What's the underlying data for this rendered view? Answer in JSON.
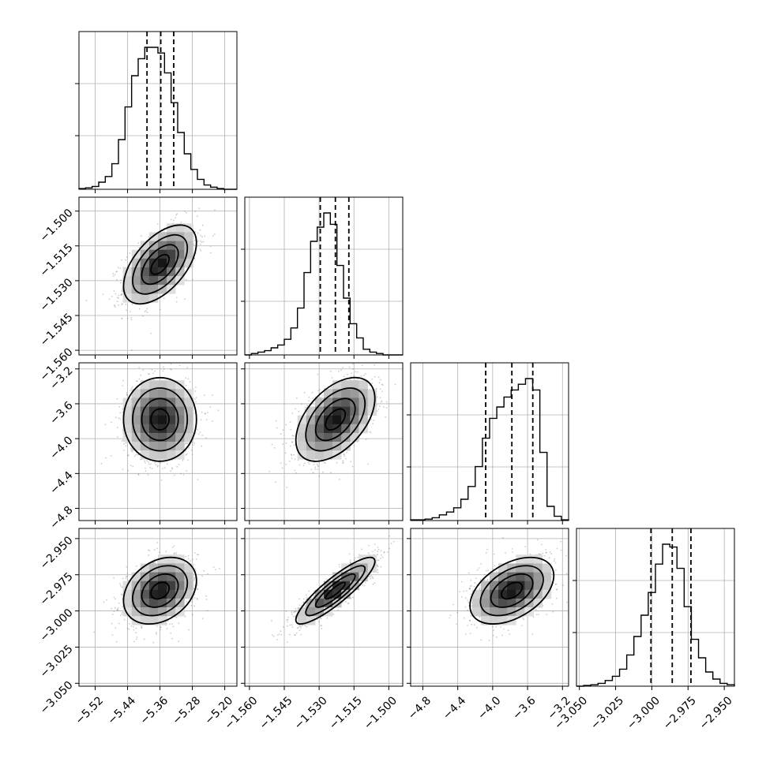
{
  "chart_data": {
    "type": "corner",
    "grid": true,
    "parameters": [
      {
        "range": [
          -5.56,
          -5.17
        ],
        "ticks": [
          -5.52,
          -5.44,
          -5.36,
          -5.28,
          -5.2
        ],
        "tick_labels": [
          "−5.52",
          "−5.44",
          "−5.36",
          "−5.28",
          "−5.20"
        ],
        "quantiles": [
          -5.392,
          -5.358,
          -5.326
        ],
        "hist": [
          0.5,
          1,
          2,
          5,
          9,
          18,
          35,
          58,
          80,
          92,
          100,
          100,
          96,
          82,
          61,
          40,
          25,
          14,
          7,
          3,
          1.5,
          0.5,
          0,
          0
        ]
      },
      {
        "range": [
          -1.562,
          -1.494
        ],
        "ticks": [
          -1.56,
          -1.545,
          -1.53,
          -1.515,
          -1.5
        ],
        "tick_labels": [
          "−1.560",
          "−1.545",
          "−1.530",
          "−1.515",
          "−1.500"
        ],
        "quantiles": [
          -1.5295,
          -1.523,
          -1.5172
        ],
        "hist": [
          0,
          1,
          2,
          3,
          5,
          7,
          11,
          19,
          33,
          58,
          80,
          90,
          100,
          92,
          63,
          40,
          22,
          12,
          4,
          2,
          1,
          0,
          0,
          0
        ]
      },
      {
        "range": [
          -4.94,
          -3.13
        ],
        "ticks": [
          -4.8,
          -4.4,
          -4.0,
          -3.6,
          -3.2
        ],
        "tick_labels": [
          "−4.8",
          "−4.4",
          "−4.0",
          "−3.6",
          "−3.2"
        ],
        "quantiles": [
          -4.08,
          -3.78,
          -3.54
        ],
        "hist": [
          0.5,
          0.5,
          1,
          2,
          4,
          6,
          9,
          15,
          24,
          38,
          58,
          72,
          80,
          87,
          92,
          96,
          100,
          92,
          48,
          10,
          3,
          0.5
        ]
      },
      {
        "range": [
          -3.052,
          -2.943
        ],
        "ticks": [
          -3.05,
          -3.025,
          -3.0,
          -2.975,
          -2.95
        ],
        "tick_labels": [
          "−3.050",
          "−3.025",
          "−3.000",
          "−2.975",
          "−2.950"
        ],
        "quantiles": [
          -3.0006,
          -2.9859,
          -2.973
        ],
        "hist": [
          0,
          0.5,
          1,
          2,
          4,
          7,
          12,
          22,
          35,
          50,
          66,
          86,
          100,
          98,
          83,
          56,
          33,
          20,
          10,
          5,
          2,
          1
        ]
      }
    ],
    "pairs": [
      {
        "col": 0,
        "row": 1,
        "center": [
          -5.36,
          -1.523
        ],
        "sigma": [
          0.045,
          0.0085
        ],
        "rho": 0.55
      },
      {
        "col": 0,
        "row": 2,
        "center": [
          -5.36,
          -3.78
        ],
        "sigma": [
          0.045,
          0.24
        ],
        "rho": 0.0
      },
      {
        "col": 1,
        "row": 2,
        "center": [
          -1.523,
          -3.78
        ],
        "sigma": [
          0.0085,
          0.24
        ],
        "rho": 0.5
      },
      {
        "col": 0,
        "row": 3,
        "center": [
          -5.36,
          -2.986
        ],
        "sigma": [
          0.045,
          0.0115
        ],
        "rho": 0.3
      },
      {
        "col": 1,
        "row": 3,
        "center": [
          -1.523,
          -2.986
        ],
        "sigma": [
          0.0085,
          0.0115
        ],
        "rho": 0.88
      },
      {
        "col": 2,
        "row": 3,
        "center": [
          -3.78,
          -2.986
        ],
        "sigma": [
          0.24,
          0.0115
        ],
        "rho": 0.45
      }
    ]
  }
}
